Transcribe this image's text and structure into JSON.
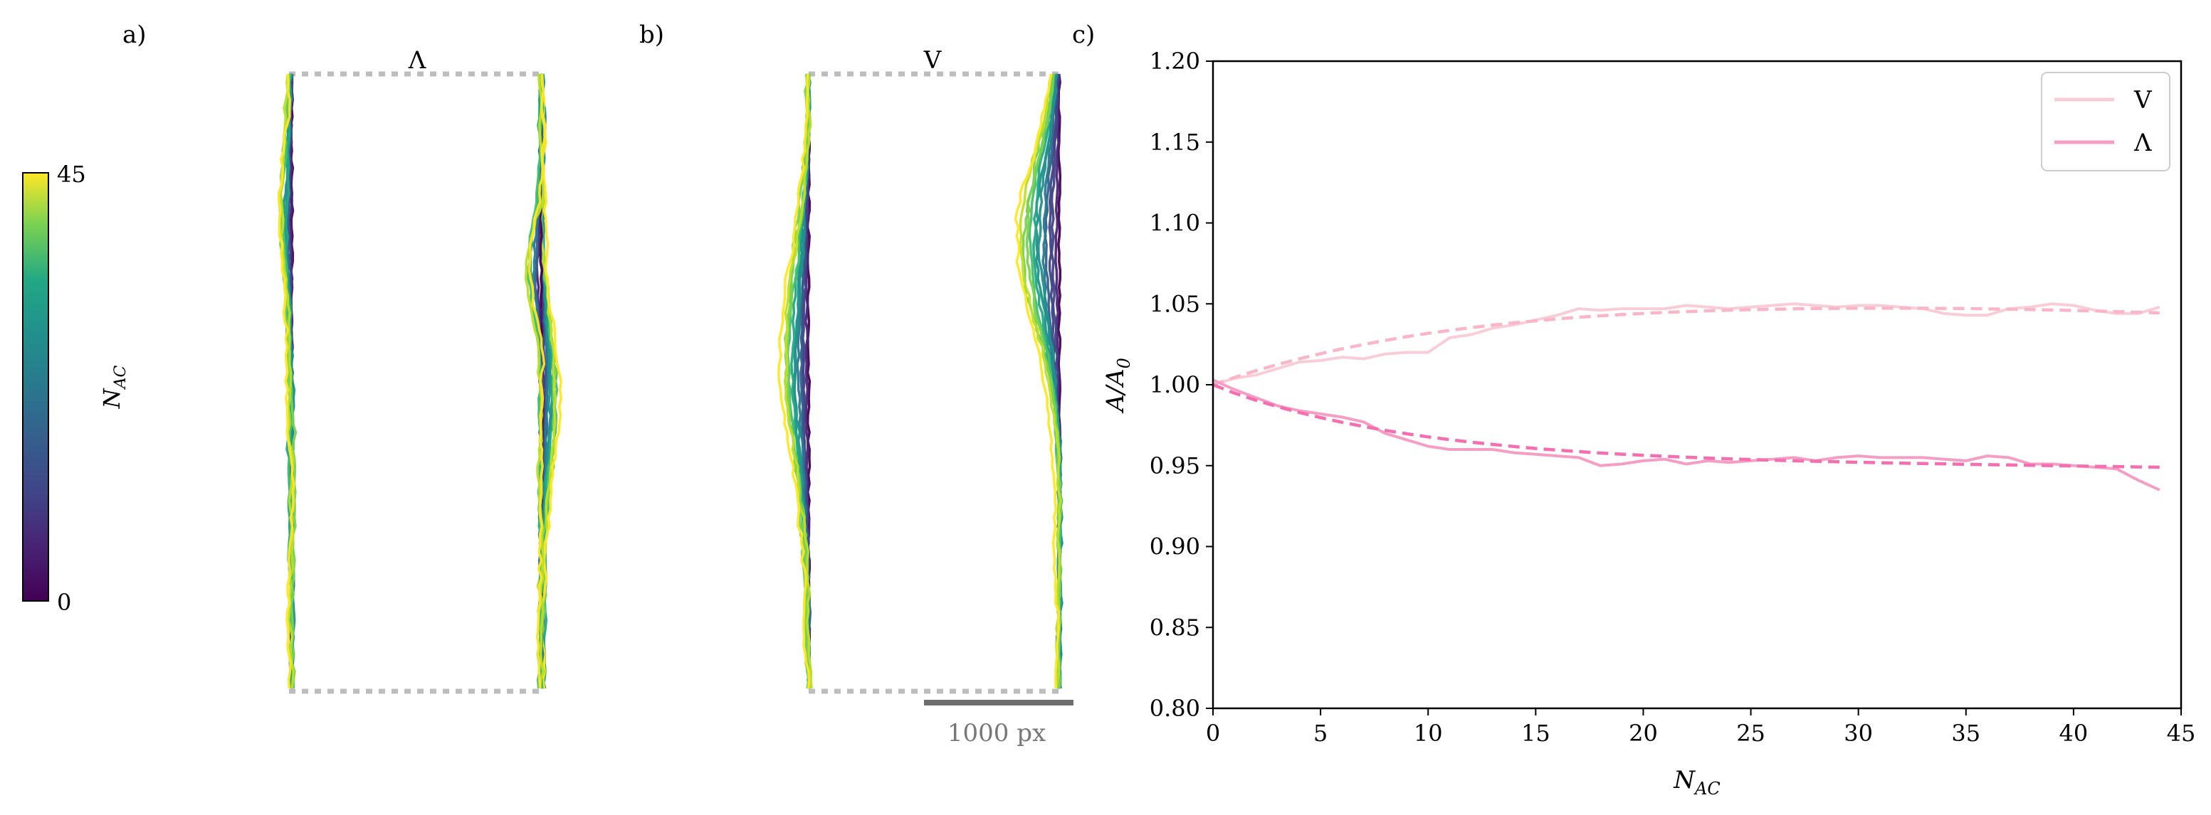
{
  "panels": {
    "a": {
      "label": "a)",
      "title": "Λ",
      "colorbar": {
        "label": "N_AC",
        "label_main": "N",
        "label_sub": "AC",
        "max_label": "45",
        "min_label": "0",
        "range": [
          0,
          45
        ],
        "colormap": "viridis"
      }
    },
    "b": {
      "label": "b)",
      "title": "V",
      "scalebar_label": "1000 px"
    },
    "c": {
      "label": "c)"
    }
  },
  "chart_data": {
    "type": "line",
    "xlabel": "N_AC",
    "xlabel_main": "N",
    "xlabel_sub": "AC",
    "ylabel": "A/A_0",
    "ylabel_main": "A/A",
    "ylabel_sub": "0",
    "xlim": [
      0,
      45
    ],
    "ylim": [
      0.8,
      1.2
    ],
    "xticks": [
      0,
      5,
      10,
      15,
      20,
      25,
      30,
      35,
      40,
      45
    ],
    "xtick_labels": [
      "0",
      "5",
      "10",
      "15",
      "20",
      "25",
      "30",
      "35",
      "40",
      "45"
    ],
    "yticks": [
      0.8,
      0.85,
      0.9,
      0.95,
      1.0,
      1.05,
      1.1,
      1.15,
      1.2
    ],
    "ytick_labels": [
      "0.80",
      "0.85",
      "0.90",
      "0.95",
      "1.00",
      "1.05",
      "1.10",
      "1.15",
      "1.20"
    ],
    "legend_position": "top-right",
    "series": [
      {
        "name": "V",
        "color": "#f9cdd8",
        "x": [
          0,
          1,
          2,
          3,
          4,
          5,
          6,
          7,
          8,
          9,
          10,
          11,
          12,
          13,
          14,
          15,
          16,
          17,
          18,
          19,
          20,
          21,
          22,
          23,
          24,
          25,
          26,
          27,
          28,
          29,
          30,
          31,
          32,
          33,
          34,
          35,
          36,
          37,
          38,
          39,
          40,
          41,
          42,
          43,
          44
        ],
        "values": [
          1.0,
          1.004,
          1.006,
          1.01,
          1.014,
          1.015,
          1.017,
          1.016,
          1.019,
          1.02,
          1.02,
          1.029,
          1.031,
          1.035,
          1.037,
          1.04,
          1.043,
          1.047,
          1.046,
          1.047,
          1.047,
          1.047,
          1.049,
          1.048,
          1.047,
          1.048,
          1.049,
          1.05,
          1.049,
          1.048,
          1.049,
          1.049,
          1.048,
          1.047,
          1.044,
          1.043,
          1.043,
          1.047,
          1.048,
          1.05,
          1.049,
          1.046,
          1.044,
          1.044,
          1.048
        ],
        "fit": [
          1.0,
          1.0045,
          1.0087,
          1.0125,
          1.016,
          1.0192,
          1.0222,
          1.0249,
          1.0274,
          1.0297,
          1.0318,
          1.0336,
          1.0353,
          1.0369,
          1.0383,
          1.0395,
          1.0407,
          1.0417,
          1.0426,
          1.0434,
          1.0441,
          1.0447,
          1.0452,
          1.0457,
          1.0461,
          1.0464,
          1.0467,
          1.0469,
          1.0471,
          1.0472,
          1.0473,
          1.0473,
          1.0473,
          1.0473,
          1.0472,
          1.0471,
          1.0469,
          1.0467,
          1.0465,
          1.0462,
          1.0459,
          1.0456,
          1.0452,
          1.0448,
          1.0444
        ]
      },
      {
        "name": "Λ",
        "color": "#f59ec4",
        "x": [
          0,
          1,
          2,
          3,
          4,
          5,
          6,
          7,
          8,
          9,
          10,
          11,
          12,
          13,
          14,
          15,
          16,
          17,
          18,
          19,
          20,
          21,
          22,
          23,
          24,
          25,
          26,
          27,
          28,
          29,
          30,
          31,
          32,
          33,
          34,
          35,
          36,
          37,
          38,
          39,
          40,
          41,
          42,
          43,
          44
        ],
        "values": [
          1.003,
          0.997,
          0.992,
          0.987,
          0.984,
          0.982,
          0.98,
          0.977,
          0.97,
          0.966,
          0.962,
          0.96,
          0.96,
          0.96,
          0.958,
          0.957,
          0.956,
          0.955,
          0.95,
          0.951,
          0.953,
          0.954,
          0.951,
          0.953,
          0.952,
          0.953,
          0.954,
          0.955,
          0.953,
          0.955,
          0.956,
          0.955,
          0.955,
          0.955,
          0.954,
          0.953,
          0.956,
          0.955,
          0.951,
          0.951,
          0.95,
          0.949,
          0.948,
          0.941,
          0.935
        ],
        "fit": [
          1.0,
          0.9948,
          0.9904,
          0.9864,
          0.9829,
          0.9797,
          0.9768,
          0.9742,
          0.9718,
          0.9697,
          0.9678,
          0.9661,
          0.9645,
          0.9631,
          0.9618,
          0.9606,
          0.9596,
          0.9587,
          0.9578,
          0.9571,
          0.9564,
          0.9558,
          0.9552,
          0.9547,
          0.9542,
          0.9538,
          0.9534,
          0.953,
          0.9527,
          0.9524,
          0.9521,
          0.9518,
          0.9515,
          0.9513,
          0.9511,
          0.9508,
          0.9506,
          0.9504,
          0.9502,
          0.95,
          0.9498,
          0.9496,
          0.9494,
          0.9492,
          0.949
        ]
      }
    ]
  }
}
